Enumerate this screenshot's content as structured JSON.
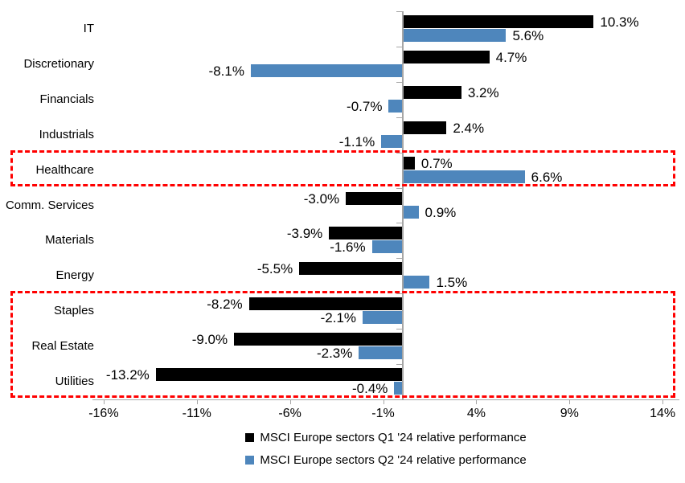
{
  "chart_data": {
    "type": "bar",
    "orientation": "horizontal",
    "title": "",
    "categories": [
      "IT",
      "Discretionary",
      "Financials",
      "Industrials",
      "Healthcare",
      "Comm. Services",
      "Materials",
      "Energy",
      "Staples",
      "Real Estate",
      "Utilities"
    ],
    "series": [
      {
        "name": "MSCI Europe sectors Q1 '24 relative performance",
        "color": "#000000",
        "values": [
          10.3,
          4.7,
          3.2,
          2.4,
          0.7,
          -3.0,
          -3.9,
          -5.5,
          -8.2,
          -9.0,
          -13.2
        ],
        "labels": [
          "10.3%",
          "4.7%",
          "3.2%",
          "2.4%",
          "0.7%",
          "-3.0%",
          "-3.9%",
          "-5.5%",
          "-8.2%",
          "-9.0%",
          "-13.2%"
        ]
      },
      {
        "name": "MSCI Europe sectors Q2 '24 relative performance",
        "color": "#4E86BC",
        "values": [
          5.6,
          -8.1,
          -0.7,
          -1.1,
          6.6,
          0.9,
          -1.6,
          1.5,
          -2.1,
          -2.3,
          -0.4
        ],
        "labels": [
          "5.6%",
          "-8.1%",
          "-0.7%",
          "-1.1%",
          "6.6%",
          "0.9%",
          "-1.6%",
          "1.5%",
          "-2.1%",
          "-2.3%",
          "-0.4%"
        ]
      }
    ],
    "x_ticks": [
      {
        "value": -16,
        "label": "-16%"
      },
      {
        "value": -11,
        "label": "-11%"
      },
      {
        "value": -6,
        "label": "-6%"
      },
      {
        "value": -1,
        "label": "-1%"
      },
      {
        "value": 4,
        "label": "4%"
      },
      {
        "value": 9,
        "label": "9%"
      },
      {
        "value": 14,
        "label": "14%"
      }
    ],
    "xlim": [
      -16.6,
      14.9
    ],
    "grid": false,
    "axis_color": "#A6A6A6",
    "legend_position": "bottom",
    "highlight_boxes": [
      {
        "description": "Healthcare row outlined",
        "rows": [
          4,
          4
        ],
        "color": "#FF0000"
      },
      {
        "description": "Staples, Real Estate and Utilities rows outlined",
        "rows": [
          8,
          10
        ],
        "color": "#FF0000"
      }
    ]
  }
}
